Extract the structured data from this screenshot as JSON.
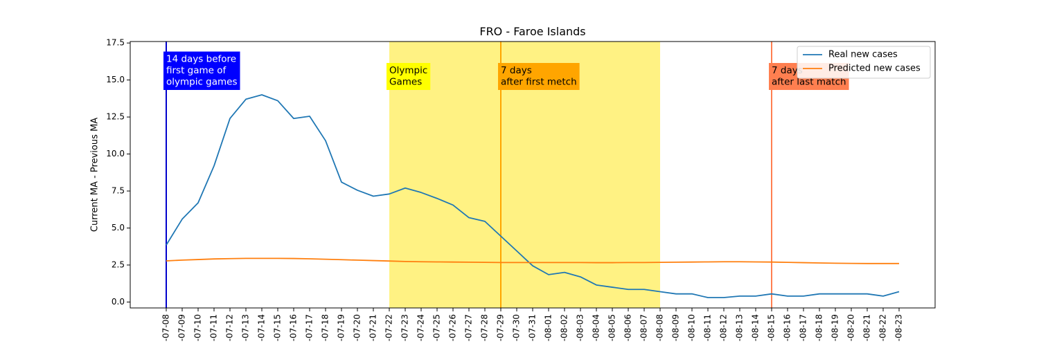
{
  "chart_data": {
    "type": "line",
    "title": "FRO - Faroe Islands",
    "xlabel": "",
    "ylabel": "Current MA - Previous MA",
    "ylim": [
      -0.4,
      17.6
    ],
    "yticks": [
      0.0,
      2.5,
      5.0,
      7.5,
      10.0,
      12.5,
      15.0,
      17.5
    ],
    "ytick_labels": [
      "0.0",
      "2.5",
      "5.0",
      "7.5",
      "10.0",
      "12.5",
      "15.0",
      "17.5"
    ],
    "x": [
      "-07-08",
      "-07-09",
      "-07-10",
      "-07-11",
      "-07-12",
      "-07-13",
      "-07-14",
      "-07-15",
      "-07-16",
      "-07-17",
      "-07-18",
      "-07-19",
      "-07-20",
      "-07-21",
      "-07-22",
      "-07-23",
      "-07-24",
      "-07-25",
      "-07-26",
      "-07-27",
      "-07-28",
      "-07-29",
      "-07-30",
      "-07-31",
      "-08-01",
      "-08-02",
      "-08-03",
      "-08-04",
      "-08-05",
      "-08-06",
      "-08-07",
      "-08-08",
      "-08-09",
      "-08-10",
      "-08-11",
      "-08-12",
      "-08-13",
      "-08-14",
      "-08-15",
      "-08-16",
      "-08-17",
      "-08-18",
      "-08-19",
      "-08-20",
      "-08-21",
      "-08-22",
      "-08-23"
    ],
    "series": [
      {
        "name": "Real new cases",
        "color": "#1f77b4",
        "values": [
          3.85,
          5.6,
          6.7,
          9.2,
          12.4,
          13.7,
          14.0,
          13.6,
          12.4,
          12.55,
          10.9,
          8.1,
          7.55,
          7.15,
          7.3,
          7.7,
          7.4,
          7.0,
          6.55,
          5.7,
          5.45,
          4.45,
          3.45,
          2.45,
          1.85,
          2.0,
          1.7,
          1.15,
          1.0,
          0.85,
          0.85,
          0.7,
          0.55,
          0.55,
          0.3,
          0.3,
          0.4,
          0.4,
          0.55,
          0.4,
          0.4,
          0.55,
          0.55,
          0.55,
          0.55,
          0.4,
          0.7
        ]
      },
      {
        "name": "Predicted new cases",
        "color": "#ff7f0e",
        "values": [
          2.78,
          2.83,
          2.87,
          2.91,
          2.93,
          2.95,
          2.95,
          2.95,
          2.94,
          2.92,
          2.89,
          2.86,
          2.83,
          2.8,
          2.77,
          2.74,
          2.72,
          2.71,
          2.7,
          2.69,
          2.68,
          2.67,
          2.67,
          2.67,
          2.67,
          2.67,
          2.67,
          2.66,
          2.66,
          2.67,
          2.67,
          2.68,
          2.69,
          2.7,
          2.71,
          2.72,
          2.72,
          2.71,
          2.7,
          2.68,
          2.66,
          2.64,
          2.62,
          2.61,
          2.6,
          2.6,
          2.6
        ]
      }
    ],
    "shaded_region": {
      "start": "-07-22",
      "end": "-08-08",
      "color": "#fff176"
    },
    "vlines": [
      {
        "x": "-07-08",
        "color": "#0000cc",
        "label": [
          "14 days before",
          "first game of",
          "olympic games"
        ],
        "box_color": "#0000ff",
        "text_color": "#ffffff"
      },
      {
        "x": "-07-29",
        "color": "#ffa500",
        "label": [
          "7 days",
          "after first metch"
        ],
        "box_color": "#ffa500",
        "text_color": "#000000"
      },
      {
        "x": "-08-15",
        "color": "#ff7f50",
        "label": [
          "7 days",
          "after last match"
        ],
        "box_color": "#ff7f50",
        "text_color": "#000000"
      }
    ],
    "annotations": [
      {
        "x": "-07-22",
        "label": [
          "Olympic",
          "Games"
        ],
        "box_color": "#ffff00",
        "text_color": "#000000"
      }
    ],
    "legend": {
      "placement": "top-right",
      "entries": [
        "Real new cases",
        "Predicted new cases"
      ]
    },
    "grid": false
  }
}
